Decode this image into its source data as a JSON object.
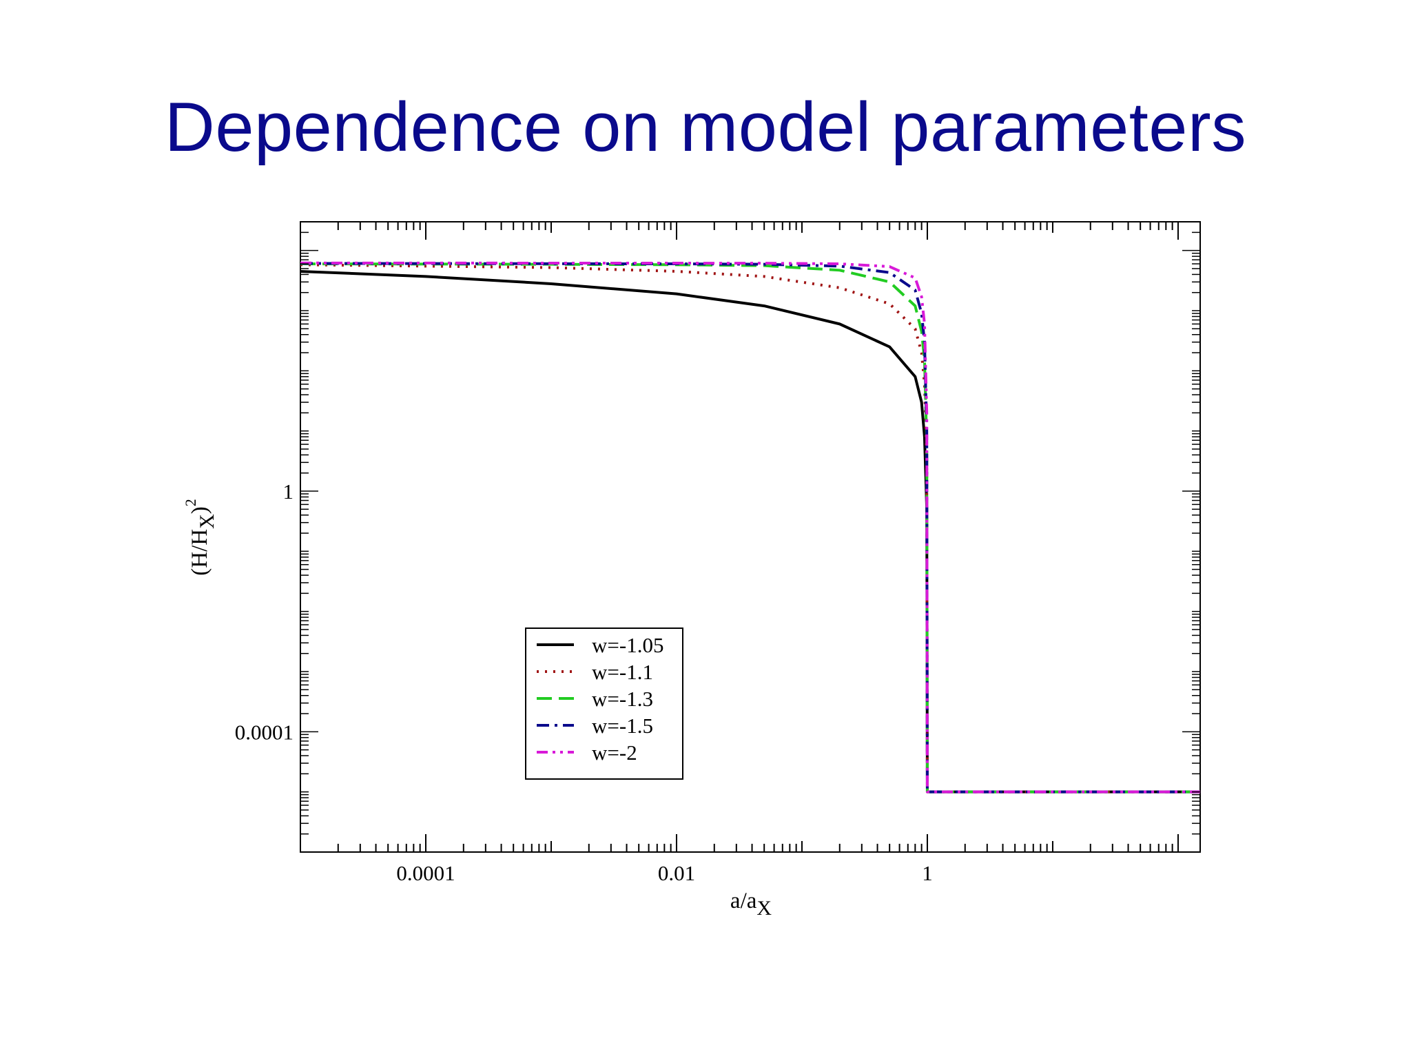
{
  "slide": {
    "title": "Dependence on model parameters"
  },
  "chart_data": {
    "type": "line",
    "title": "",
    "xlabel": "a/a",
    "xlabel_subscript": "X",
    "ylabel": "(H/H",
    "ylabel_subscript": "X",
    "ylabel_suffix": ")",
    "ylabel_superscript": "2",
    "x_scale": "log",
    "y_scale": "log",
    "xlim": [
      1e-05,
      150
    ],
    "ylim": [
      1e-06,
      30000
    ],
    "x_ticks": [
      {
        "value": 0.0001,
        "label": "0.0001"
      },
      {
        "value": 0.01,
        "label": "0.01"
      },
      {
        "value": 1,
        "label": "1"
      }
    ],
    "y_ticks": [
      {
        "value": 0.0001,
        "label": "0.0001"
      },
      {
        "value": 1,
        "label": "1"
      }
    ],
    "grid": false,
    "legend_position": "lower-left",
    "series": [
      {
        "name": "w=-1.05",
        "color": "#000000",
        "dash": "solid",
        "points": [
          [
            1e-05,
            4500
          ],
          [
            0.0001,
            3700
          ],
          [
            0.001,
            2800
          ],
          [
            0.01,
            1900
          ],
          [
            0.05,
            1200
          ],
          [
            0.2,
            600
          ],
          [
            0.5,
            250
          ],
          [
            0.8,
            80
          ],
          [
            0.9,
            30
          ],
          [
            0.95,
            8
          ],
          [
            0.99,
            0.5
          ],
          [
            1,
            1e-05
          ],
          [
            150,
            1e-05
          ]
        ]
      },
      {
        "name": "w=-1.1",
        "color": "#a01414",
        "dash": "dotted",
        "points": [
          [
            1e-05,
            5800
          ],
          [
            0.0001,
            5500
          ],
          [
            0.001,
            5200
          ],
          [
            0.01,
            4500
          ],
          [
            0.05,
            3700
          ],
          [
            0.2,
            2400
          ],
          [
            0.5,
            1300
          ],
          [
            0.8,
            500
          ],
          [
            0.9,
            200
          ],
          [
            0.95,
            60
          ],
          [
            0.99,
            3
          ],
          [
            1,
            1e-05
          ],
          [
            150,
            1e-05
          ]
        ]
      },
      {
        "name": "w=-1.3",
        "color": "#22cc22",
        "dash": "dashed",
        "points": [
          [
            1e-05,
            6000
          ],
          [
            0.001,
            5900
          ],
          [
            0.01,
            5800
          ],
          [
            0.05,
            5600
          ],
          [
            0.2,
            4700
          ],
          [
            0.5,
            3000
          ],
          [
            0.8,
            1200
          ],
          [
            0.9,
            450
          ],
          [
            0.95,
            150
          ],
          [
            0.99,
            6
          ],
          [
            1,
            1e-05
          ],
          [
            150,
            1e-05
          ]
        ]
      },
      {
        "name": "w=-1.5",
        "color": "#0a0a8c",
        "dash": "dashdot",
        "points": [
          [
            1e-05,
            6100
          ],
          [
            0.01,
            6000
          ],
          [
            0.05,
            5900
          ],
          [
            0.2,
            5500
          ],
          [
            0.5,
            4300
          ],
          [
            0.8,
            2200
          ],
          [
            0.9,
            900
          ],
          [
            0.95,
            300
          ],
          [
            0.99,
            10
          ],
          [
            1,
            1e-05
          ],
          [
            150,
            1e-05
          ]
        ]
      },
      {
        "name": "w=-2",
        "color": "#d81ad8",
        "dash": "dashdotdot",
        "points": [
          [
            1e-05,
            6200
          ],
          [
            0.05,
            6150
          ],
          [
            0.2,
            6000
          ],
          [
            0.5,
            5400
          ],
          [
            0.8,
            3500
          ],
          [
            0.9,
            1700
          ],
          [
            0.95,
            600
          ],
          [
            0.99,
            20
          ],
          [
            1,
            1e-05
          ],
          [
            150,
            1e-05
          ]
        ]
      }
    ]
  }
}
